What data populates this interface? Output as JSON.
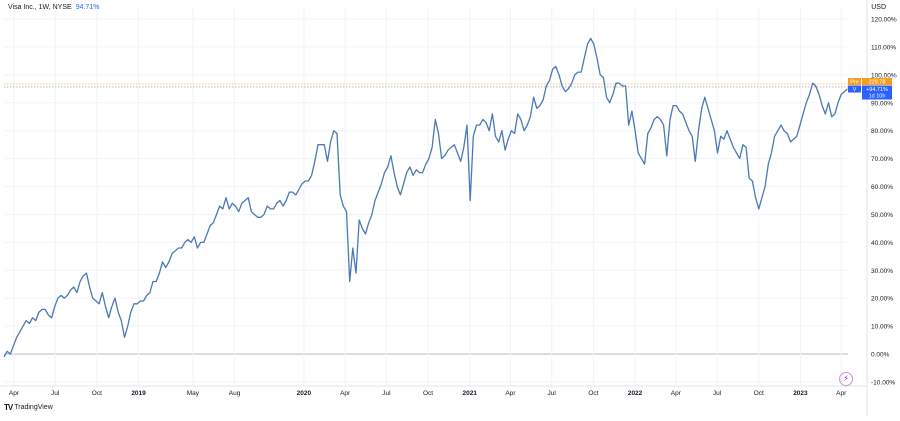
{
  "header": {
    "symbol_label": "Visa Inc., 1W, NYSE",
    "change_value": "94.71%",
    "currency": "USD"
  },
  "footer": {
    "brand": "TradingView"
  },
  "badges": {
    "prev_tag": "Pre",
    "prev_price": "228.78",
    "symbol_tag": "V",
    "current_value": "+94.71%",
    "countdown": "1d 10h"
  },
  "colors": {
    "line": "#4a78b4",
    "prev_badge": "#f59d1e",
    "symbol_badge": "#2962ff",
    "grid": "#f0f3fa",
    "axis_text": "#131722"
  },
  "chart_data": {
    "type": "line",
    "title": "Visa Inc., 1W, NYSE",
    "xlabel": "",
    "ylabel": "",
    "y_unit": "%",
    "ylim": [
      -10,
      120
    ],
    "y_ticks": [
      "120.00%",
      "110.00%",
      "100.00%",
      "90.00%",
      "80.00%",
      "70.00%",
      "60.00%",
      "50.00%",
      "40.00%",
      "30.00%",
      "20.00%",
      "10.00%",
      "0.00%",
      "-10.00%"
    ],
    "y_tick_values": [
      120,
      110,
      100,
      90,
      80,
      70,
      60,
      50,
      40,
      30,
      20,
      10,
      0,
      -10
    ],
    "x_ticks": [
      "Apr",
      "Jul",
      "Oct",
      "2019",
      "May",
      "Aug",
      "2020",
      "Apr",
      "Jul",
      "Oct",
      "2021",
      "Apr",
      "Jul",
      "Oct",
      "2022",
      "Apr",
      "Jul",
      "Oct",
      "2023",
      "Apr"
    ],
    "x_tick_dates": [
      "2018-04-01",
      "2018-07-01",
      "2018-10-01",
      "2019-01-01",
      "2019-05-01",
      "2019-08-01",
      "2020-01-01",
      "2020-04-01",
      "2020-07-01",
      "2020-10-01",
      "2021-01-01",
      "2021-04-01",
      "2021-07-01",
      "2021-10-01",
      "2022-01-01",
      "2022-04-01",
      "2022-07-01",
      "2022-10-01",
      "2023-01-01",
      "2023-04-01"
    ],
    "x_range": [
      "2018-03-10",
      "2023-04-16"
    ],
    "reference_lines": [
      {
        "name": "Pre",
        "value": 96
      }
    ],
    "grid": true,
    "series": [
      {
        "name": "V",
        "points": [
          [
            "2018-03-10",
            -1
          ],
          [
            "2018-03-17",
            1
          ],
          [
            "2018-03-24",
            0
          ],
          [
            "2018-03-31",
            3
          ],
          [
            "2018-04-07",
            6
          ],
          [
            "2018-04-14",
            8
          ],
          [
            "2018-04-21",
            10
          ],
          [
            "2018-04-28",
            12
          ],
          [
            "2018-05-05",
            11
          ],
          [
            "2018-05-12",
            13
          ],
          [
            "2018-05-19",
            12
          ],
          [
            "2018-05-26",
            15
          ],
          [
            "2018-06-02",
            16
          ],
          [
            "2018-06-09",
            16
          ],
          [
            "2018-06-16",
            14
          ],
          [
            "2018-06-23",
            13
          ],
          [
            "2018-06-30",
            17
          ],
          [
            "2018-07-07",
            20
          ],
          [
            "2018-07-14",
            21
          ],
          [
            "2018-07-21",
            20
          ],
          [
            "2018-07-28",
            21
          ],
          [
            "2018-08-04",
            23
          ],
          [
            "2018-08-11",
            24
          ],
          [
            "2018-08-18",
            22
          ],
          [
            "2018-08-25",
            26
          ],
          [
            "2018-09-01",
            28
          ],
          [
            "2018-09-08",
            29
          ],
          [
            "2018-09-15",
            24
          ],
          [
            "2018-09-22",
            20
          ],
          [
            "2018-09-29",
            19
          ],
          [
            "2018-10-06",
            18
          ],
          [
            "2018-10-13",
            22
          ],
          [
            "2018-10-20",
            17
          ],
          [
            "2018-10-27",
            13
          ],
          [
            "2018-11-03",
            17
          ],
          [
            "2018-11-10",
            20
          ],
          [
            "2018-11-17",
            15
          ],
          [
            "2018-11-24",
            12
          ],
          [
            "2018-12-01",
            6
          ],
          [
            "2018-12-08",
            10
          ],
          [
            "2018-12-15",
            15
          ],
          [
            "2018-12-22",
            18
          ],
          [
            "2018-12-29",
            18
          ],
          [
            "2019-01-05",
            19
          ],
          [
            "2019-01-12",
            19
          ],
          [
            "2019-01-19",
            21
          ],
          [
            "2019-01-26",
            22
          ],
          [
            "2019-02-02",
            26
          ],
          [
            "2019-02-09",
            26
          ],
          [
            "2019-02-16",
            29
          ],
          [
            "2019-02-23",
            33
          ],
          [
            "2019-03-02",
            31
          ],
          [
            "2019-03-09",
            33
          ],
          [
            "2019-03-16",
            36
          ],
          [
            "2019-03-23",
            37
          ],
          [
            "2019-03-30",
            38
          ],
          [
            "2019-04-06",
            38
          ],
          [
            "2019-04-13",
            40
          ],
          [
            "2019-04-20",
            41
          ],
          [
            "2019-04-27",
            40
          ],
          [
            "2019-05-04",
            42
          ],
          [
            "2019-05-11",
            38
          ],
          [
            "2019-05-18",
            40
          ],
          [
            "2019-05-25",
            40
          ],
          [
            "2019-06-01",
            43
          ],
          [
            "2019-06-08",
            46
          ],
          [
            "2019-06-15",
            47
          ],
          [
            "2019-06-22",
            50
          ],
          [
            "2019-06-29",
            53
          ],
          [
            "2019-07-06",
            52
          ],
          [
            "2019-07-13",
            56
          ],
          [
            "2019-07-20",
            52
          ],
          [
            "2019-07-27",
            54
          ],
          [
            "2019-08-03",
            53
          ],
          [
            "2019-08-10",
            51
          ],
          [
            "2019-08-17",
            54
          ],
          [
            "2019-08-24",
            55
          ],
          [
            "2019-08-31",
            56
          ],
          [
            "2019-09-07",
            51
          ],
          [
            "2019-09-14",
            50
          ],
          [
            "2019-09-21",
            49
          ],
          [
            "2019-09-28",
            49
          ],
          [
            "2019-10-05",
            50
          ],
          [
            "2019-10-12",
            53
          ],
          [
            "2019-10-19",
            52
          ],
          [
            "2019-10-26",
            52
          ],
          [
            "2019-11-02",
            54
          ],
          [
            "2019-11-09",
            55
          ],
          [
            "2019-11-16",
            53
          ],
          [
            "2019-11-23",
            55
          ],
          [
            "2019-11-30",
            58
          ],
          [
            "2019-12-07",
            58
          ],
          [
            "2019-12-14",
            57
          ],
          [
            "2019-12-21",
            59
          ],
          [
            "2019-12-28",
            61
          ],
          [
            "2020-01-04",
            62
          ],
          [
            "2020-01-11",
            62
          ],
          [
            "2020-01-18",
            64
          ],
          [
            "2020-01-25",
            69
          ],
          [
            "2020-02-01",
            75
          ],
          [
            "2020-02-08",
            75
          ],
          [
            "2020-02-15",
            75
          ],
          [
            "2020-02-22",
            69
          ],
          [
            "2020-02-29",
            76
          ],
          [
            "2020-03-07",
            80
          ],
          [
            "2020-03-14",
            79
          ],
          [
            "2020-03-21",
            57
          ],
          [
            "2020-03-28",
            53
          ],
          [
            "2020-04-04",
            51
          ],
          [
            "2020-04-11",
            26
          ],
          [
            "2020-04-18",
            38
          ],
          [
            "2020-04-25",
            29
          ],
          [
            "2020-05-02",
            48
          ],
          [
            "2020-05-09",
            45
          ],
          [
            "2020-05-16",
            43
          ],
          [
            "2020-05-23",
            47
          ],
          [
            "2020-05-30",
            50
          ],
          [
            "2020-06-06",
            55
          ],
          [
            "2020-06-13",
            58
          ],
          [
            "2020-06-20",
            61
          ],
          [
            "2020-06-27",
            65
          ],
          [
            "2020-07-04",
            67
          ],
          [
            "2020-07-11",
            71
          ],
          [
            "2020-07-18",
            65
          ],
          [
            "2020-07-25",
            60
          ],
          [
            "2020-08-01",
            57
          ],
          [
            "2020-08-08",
            61
          ],
          [
            "2020-08-15",
            65
          ],
          [
            "2020-08-22",
            67
          ],
          [
            "2020-08-29",
            64
          ],
          [
            "2020-09-05",
            66
          ],
          [
            "2020-09-12",
            65
          ],
          [
            "2020-09-19",
            65
          ],
          [
            "2020-09-26",
            68
          ],
          [
            "2020-10-03",
            70
          ],
          [
            "2020-10-10",
            74
          ],
          [
            "2020-10-17",
            84
          ],
          [
            "2020-10-24",
            79
          ],
          [
            "2020-10-31",
            70
          ],
          [
            "2020-11-07",
            71
          ],
          [
            "2020-11-14",
            73
          ],
          [
            "2020-11-21",
            74
          ],
          [
            "2020-11-28",
            75
          ],
          [
            "2020-12-05",
            72
          ],
          [
            "2020-12-12",
            69
          ],
          [
            "2020-12-19",
            74
          ],
          [
            "2020-12-26",
            82
          ],
          [
            "2021-01-02",
            55
          ],
          [
            "2021-01-09",
            78
          ],
          [
            "2021-01-16",
            82
          ],
          [
            "2021-01-23",
            82
          ],
          [
            "2021-01-30",
            84
          ],
          [
            "2021-02-06",
            83
          ],
          [
            "2021-02-13",
            80
          ],
          [
            "2021-02-20",
            86
          ],
          [
            "2021-02-27",
            78
          ],
          [
            "2021-03-06",
            76
          ],
          [
            "2021-03-13",
            80
          ],
          [
            "2021-03-20",
            73
          ],
          [
            "2021-03-27",
            77
          ],
          [
            "2021-04-03",
            80
          ],
          [
            "2021-04-10",
            79
          ],
          [
            "2021-04-17",
            86
          ],
          [
            "2021-04-24",
            84
          ],
          [
            "2021-05-01",
            80
          ],
          [
            "2021-05-08",
            82
          ],
          [
            "2021-05-15",
            85
          ],
          [
            "2021-05-22",
            92
          ],
          [
            "2021-05-29",
            88
          ],
          [
            "2021-06-05",
            89
          ],
          [
            "2021-06-12",
            91
          ],
          [
            "2021-06-19",
            96
          ],
          [
            "2021-06-26",
            98
          ],
          [
            "2021-07-03",
            102
          ],
          [
            "2021-07-10",
            103
          ],
          [
            "2021-07-17",
            100
          ],
          [
            "2021-07-24",
            96
          ],
          [
            "2021-07-31",
            94
          ],
          [
            "2021-08-07",
            95
          ],
          [
            "2021-08-14",
            97
          ],
          [
            "2021-08-21",
            100
          ],
          [
            "2021-08-28",
            101
          ],
          [
            "2021-09-04",
            101
          ],
          [
            "2021-09-11",
            106
          ],
          [
            "2021-09-18",
            111
          ],
          [
            "2021-09-25",
            113
          ],
          [
            "2021-10-02",
            111
          ],
          [
            "2021-10-09",
            106
          ],
          [
            "2021-10-16",
            100
          ],
          [
            "2021-10-23",
            99
          ],
          [
            "2021-10-30",
            92
          ],
          [
            "2021-11-06",
            90
          ],
          [
            "2021-11-13",
            93
          ],
          [
            "2021-11-20",
            97
          ],
          [
            "2021-11-27",
            97
          ],
          [
            "2021-12-04",
            96
          ],
          [
            "2021-12-11",
            96
          ],
          [
            "2021-12-18",
            82
          ],
          [
            "2021-12-25",
            87
          ],
          [
            "2022-01-01",
            80
          ],
          [
            "2022-01-08",
            72
          ],
          [
            "2022-01-15",
            70
          ],
          [
            "2022-01-22",
            68
          ],
          [
            "2022-01-29",
            79
          ],
          [
            "2022-02-05",
            81
          ],
          [
            "2022-02-12",
            84
          ],
          [
            "2022-02-19",
            85
          ],
          [
            "2022-02-26",
            84
          ],
          [
            "2022-03-05",
            82
          ],
          [
            "2022-03-12",
            71
          ],
          [
            "2022-03-19",
            84
          ],
          [
            "2022-03-26",
            89
          ],
          [
            "2022-04-02",
            89
          ],
          [
            "2022-04-09",
            87
          ],
          [
            "2022-04-16",
            86
          ],
          [
            "2022-04-23",
            83
          ],
          [
            "2022-04-30",
            80
          ],
          [
            "2022-05-07",
            78
          ],
          [
            "2022-05-14",
            69
          ],
          [
            "2022-05-21",
            80
          ],
          [
            "2022-05-28",
            88
          ],
          [
            "2022-06-04",
            92
          ],
          [
            "2022-06-11",
            88
          ],
          [
            "2022-06-18",
            84
          ],
          [
            "2022-06-25",
            80
          ],
          [
            "2022-07-02",
            72
          ],
          [
            "2022-07-09",
            78
          ],
          [
            "2022-07-16",
            77
          ],
          [
            "2022-07-23",
            80
          ],
          [
            "2022-07-30",
            77
          ],
          [
            "2022-08-06",
            74
          ],
          [
            "2022-08-13",
            72
          ],
          [
            "2022-08-20",
            70
          ],
          [
            "2022-08-27",
            75
          ],
          [
            "2022-09-03",
            74
          ],
          [
            "2022-09-10",
            63
          ],
          [
            "2022-09-17",
            62
          ],
          [
            "2022-09-24",
            56
          ],
          [
            "2022-10-01",
            52
          ],
          [
            "2022-10-08",
            56
          ],
          [
            "2022-10-15",
            60
          ],
          [
            "2022-10-22",
            68
          ],
          [
            "2022-10-29",
            72
          ],
          [
            "2022-11-05",
            78
          ],
          [
            "2022-11-12",
            80
          ],
          [
            "2022-11-19",
            82
          ],
          [
            "2022-11-26",
            80
          ],
          [
            "2022-12-03",
            79
          ],
          [
            "2022-12-10",
            76
          ],
          [
            "2022-12-17",
            77
          ],
          [
            "2022-12-24",
            78
          ],
          [
            "2022-12-31",
            82
          ],
          [
            "2023-01-07",
            86
          ],
          [
            "2023-01-14",
            90
          ],
          [
            "2023-01-21",
            93
          ],
          [
            "2023-01-28",
            97
          ],
          [
            "2023-02-04",
            96
          ],
          [
            "2023-02-11",
            93
          ],
          [
            "2023-02-18",
            89
          ],
          [
            "2023-02-25",
            86
          ],
          [
            "2023-03-04",
            90
          ],
          [
            "2023-03-11",
            85
          ],
          [
            "2023-03-18",
            86
          ],
          [
            "2023-03-25",
            90
          ],
          [
            "2023-04-01",
            93
          ],
          [
            "2023-04-08",
            94
          ],
          [
            "2023-04-15",
            95
          ]
        ]
      }
    ]
  }
}
